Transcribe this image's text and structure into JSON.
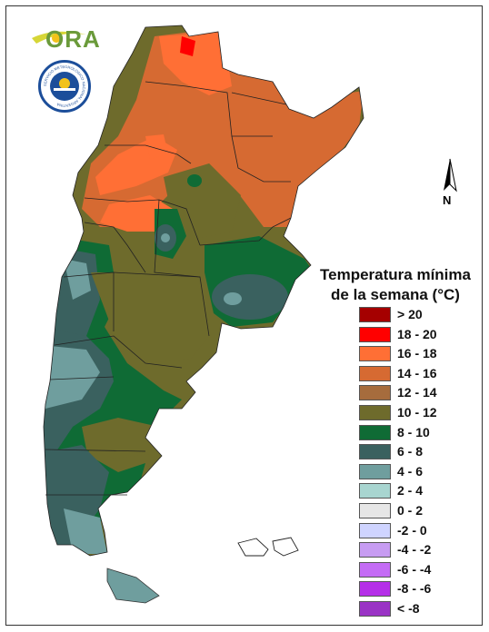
{
  "logos": {
    "ora": "ORA",
    "smn_ring_text": "SERVICIO METEOROLOGICO NACIONAL ARGENTINA"
  },
  "north_arrow": {
    "label": "N"
  },
  "legend": {
    "title_line1": "Temperatura mínima",
    "title_line2": "de la semana (°C)",
    "items": [
      {
        "label": "> 20",
        "color": "#a50000"
      },
      {
        "label": "18 - 20",
        "color": "#ff0000"
      },
      {
        "label": "16 - 18",
        "color": "#ff6f35"
      },
      {
        "label": "14 - 16",
        "color": "#d66a32"
      },
      {
        "label": "12 - 14",
        "color": "#a66c3d"
      },
      {
        "label": "10 - 12",
        "color": "#6e6b2c"
      },
      {
        "label": "8 - 10",
        "color": "#0f6b35"
      },
      {
        "label": "6 - 8",
        "color": "#3a615f"
      },
      {
        "label": "4 - 6",
        "color": "#6f9e9e"
      },
      {
        "label": "2 - 4",
        "color": "#a8d5d0"
      },
      {
        "label": "0 - 2",
        "color": "#e6e6e6"
      },
      {
        "label": "-2 - 0",
        "color": "#cfd4ff"
      },
      {
        "label": "-4 - -2",
        "color": "#c79cf2"
      },
      {
        "label": "-6 - -4",
        "color": "#c46cf5"
      },
      {
        "label": "-8 - -6",
        "color": "#b52fe8"
      },
      {
        "label": "< -8",
        "color": "#9a33c5"
      }
    ]
  }
}
